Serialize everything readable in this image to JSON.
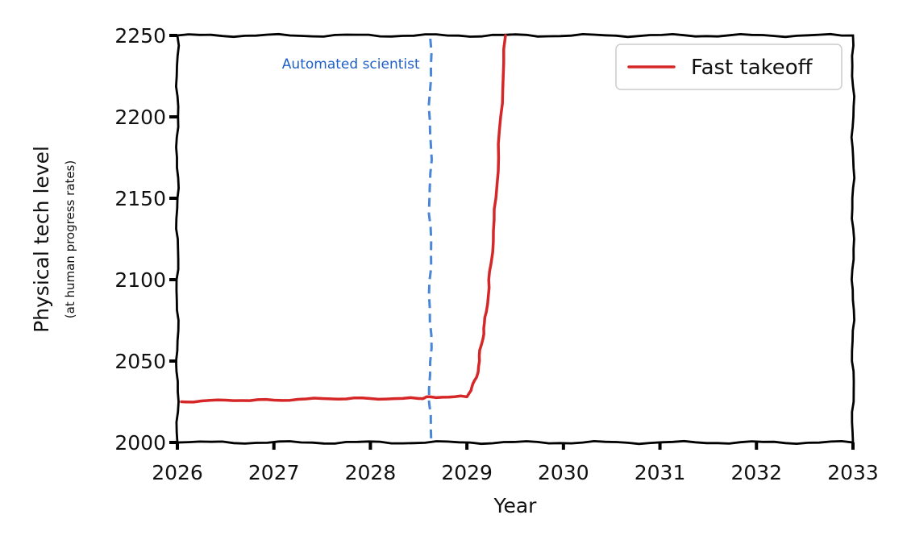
{
  "chart_data": {
    "type": "line",
    "title": "",
    "xlabel": "Year",
    "ylabel": "Physical tech level",
    "ylabel_sub": "(at human progress rates)",
    "xlim": [
      2026,
      2033
    ],
    "ylim": [
      2000,
      2250
    ],
    "xticks": [
      "2026",
      "2027",
      "2028",
      "2029",
      "2030",
      "2031",
      "2032",
      "2033"
    ],
    "yticks": [
      "2000",
      "2050",
      "2100",
      "2150",
      "2200",
      "2250"
    ],
    "grid": false,
    "legend_position": "top-right",
    "series": [
      {
        "name": "Fast takeoff",
        "color": "#d62728",
        "x": [
          2026.0,
          2026.5,
          2027.0,
          2027.5,
          2028.0,
          2028.5,
          2028.62,
          2029.0,
          2029.1,
          2029.15,
          2029.2,
          2029.25,
          2029.3,
          2029.35,
          2029.4
        ],
        "y": [
          2025,
          2026,
          2026,
          2027,
          2027,
          2027,
          2028,
          2028,
          2040,
          2060,
          2080,
          2110,
          2150,
          2200,
          2250
        ]
      }
    ],
    "annotations": [
      {
        "type": "vline",
        "x": 2028.62,
        "color": "#4a86d8",
        "style": "dashed",
        "label": "Automated scientist",
        "label_color": "#1f5fc8"
      }
    ]
  }
}
